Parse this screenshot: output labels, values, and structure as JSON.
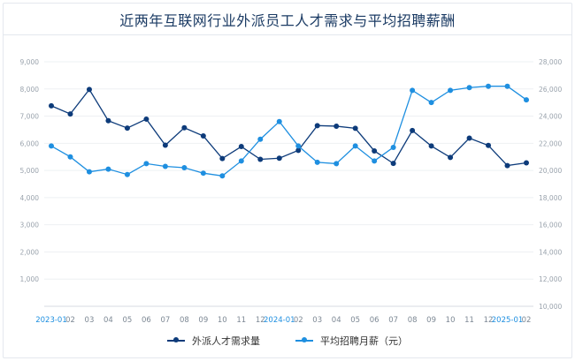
{
  "chart_data": {
    "type": "line",
    "title": "近两年互联网行业外派员工人才需求与平均招聘薪酬",
    "categories": [
      "2023-01",
      "02",
      "03",
      "04",
      "05",
      "06",
      "07",
      "08",
      "09",
      "10",
      "11",
      "12",
      "2024-01",
      "02",
      "03",
      "04",
      "05",
      "06",
      "07",
      "08",
      "09",
      "10",
      "11",
      "12",
      "2025-01",
      "02"
    ],
    "highlight_ticks": [
      "2023-01",
      "2024-01",
      "2025-01"
    ],
    "y_left": {
      "min": 0,
      "max": 9000,
      "step": 1000,
      "tick_labels": [
        "",
        "1,000",
        "2,000",
        "3,000",
        "4,000",
        "5,000",
        "6,000",
        "7,000",
        "8,000",
        "9,000"
      ]
    },
    "y_right": {
      "min": 10000,
      "max": 28000,
      "step": 2000,
      "tick_labels": [
        "10,000",
        "12,000",
        "14,000",
        "16,000",
        "18,000",
        "20,000",
        "22,000",
        "24,000",
        "26,000",
        "28,000"
      ]
    },
    "grid": true,
    "legend_position": "bottom",
    "series": [
      {
        "name": "外派人才需求量",
        "axis": "left",
        "color": "#0d3b7a",
        "values": [
          7380,
          7080,
          7980,
          6830,
          6560,
          6890,
          5930,
          6570,
          6270,
          5440,
          5880,
          5410,
          5450,
          5740,
          6650,
          6630,
          6550,
          5720,
          5260,
          6470,
          5900,
          5480,
          6190,
          5920,
          5180,
          5280
        ]
      },
      {
        "name": "平均招聘月薪（元）",
        "axis": "right",
        "color": "#1e8fe0",
        "values": [
          21800,
          21000,
          19900,
          20100,
          19700,
          20500,
          20300,
          20200,
          19800,
          19600,
          20700,
          22300,
          23600,
          21800,
          20600,
          20500,
          21800,
          20700,
          21700,
          25900,
          25000,
          25900,
          26100,
          26200,
          26200,
          25200
        ]
      }
    ]
  }
}
